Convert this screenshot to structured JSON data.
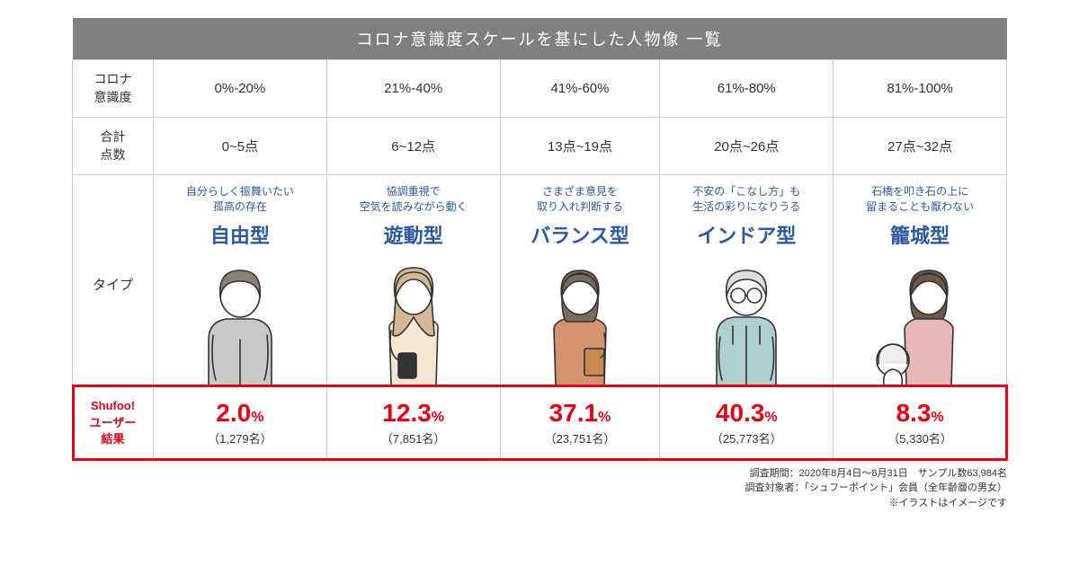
{
  "title": "コロナ意識度スケールを基にした人物像 一覧",
  "rows": {
    "awareness_label": "コロナ\n意識度",
    "score_label": "合計\n点数",
    "type_label": "タイプ",
    "result_label": "Shufoo!\nユーザー\n結果"
  },
  "columns": [
    {
      "awareness": "0%-20%",
      "score": "0~5点",
      "subtitle": "自分らしく振舞いたい\n孤高の存在",
      "typename": "自由型",
      "percent": "2.0",
      "count": "（1,279名）"
    },
    {
      "awareness": "21%-40%",
      "score": "6~12点",
      "subtitle": "協調重視で\n空気を読みながら動く",
      "typename": "遊動型",
      "percent": "12.3",
      "count": "（7,851名）"
    },
    {
      "awareness": "41%-60%",
      "score": "13点~19点",
      "subtitle": "さまざま意見を\n取り入れ判断する",
      "typename": "バランス型",
      "percent": "37.1",
      "count": "（23,751名）"
    },
    {
      "awareness": "61%-80%",
      "score": "20点~26点",
      "subtitle": "不安の「こなし方」も\n生活の彩りになりうる",
      "typename": "インドア型",
      "percent": "40.3",
      "count": "（25,773名）"
    },
    {
      "awareness": "81%-100%",
      "score": "27点~32点",
      "subtitle": "石橋を叩き石の上に\n留まることも厭わない",
      "typename": "籠城型",
      "percent": "8.3",
      "count": "（5,330名）"
    }
  ],
  "footnote": {
    "line1": "調査期間：2020年8月4日～8月31日　サンプル数63,984名",
    "line2": "調査対象者：「シュフーポイント」会員（全年齢層の男女）",
    "line3": "※イラストはイメージです"
  },
  "colors": {
    "header_bg": "#808080",
    "header_text": "#ffffff",
    "border": "#cccccc",
    "accent_blue": "#2b5aa0",
    "accent_red": "#e60012",
    "text": "#333333",
    "illust_stroke": "#333333",
    "illust_skin": "#ffffff",
    "illust_hair1": "#8a8074",
    "illust_hair2": "#d4b896",
    "illust_hair3": "#7a6a5a",
    "illust_hair4": "#dddddd",
    "illust_hair5": "#6b5a4a",
    "illust_cloth1": "#c8c8c8",
    "illust_cloth2": "#f5e6d3",
    "illust_cloth3": "#d4926f",
    "illust_cloth4": "#aecfd0",
    "illust_cloth5": "#e8b8b8"
  }
}
